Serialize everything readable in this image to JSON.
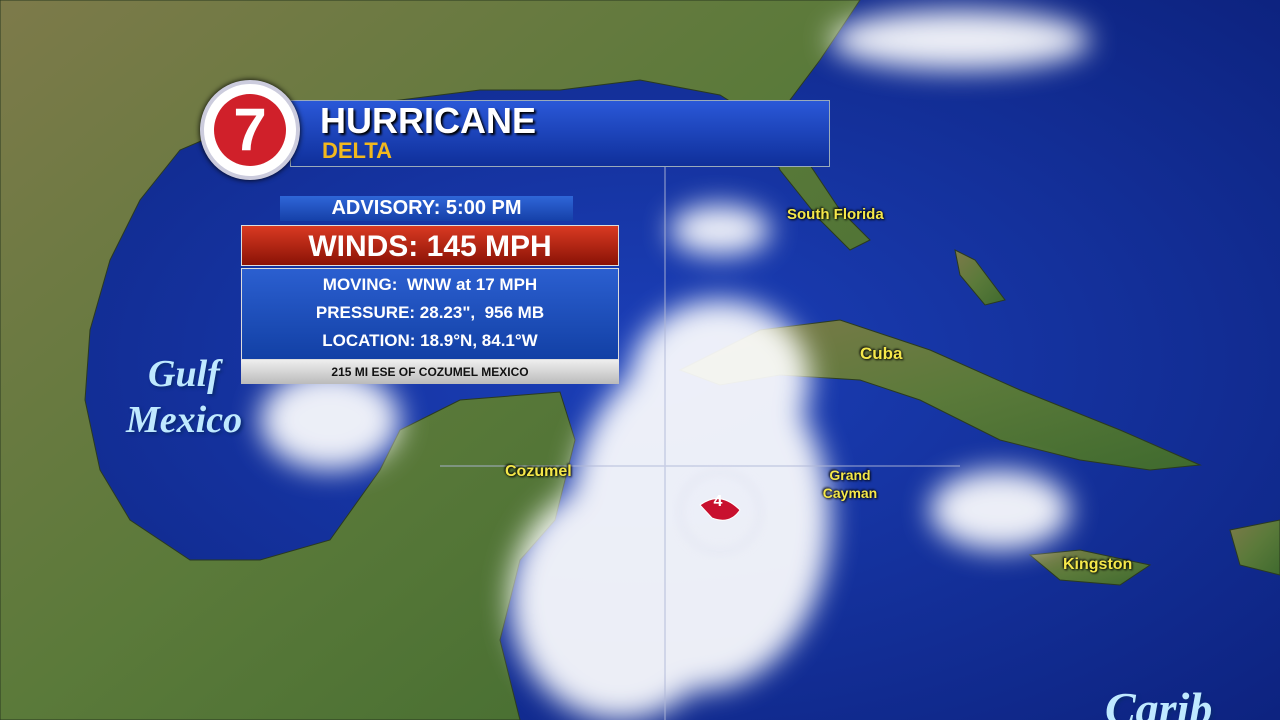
{
  "header": {
    "logo": "7",
    "title": "HURRICANE",
    "subtitle": "DELTA"
  },
  "advisory": {
    "time": "ADVISORY: 5:00 PM",
    "winds": "WINDS: 145 MPH",
    "moving": "MOVING:  WNW at 17 MPH",
    "pressure": "PRESSURE: 28.23\",  956 MB",
    "location": "LOCATION: 18.9°N, 84.1°W",
    "reference": "215 MI ESE OF COZUMEL MEXICO"
  },
  "storm": {
    "category": "4"
  },
  "map_labels": {
    "south_florida": "South Florida",
    "cuba": "Cuba",
    "cozumel": "Cozumel",
    "grand_cayman": "Grand Cayman",
    "kingston": "Kingston",
    "gulf": "Gulf",
    "mexico": "Mexico",
    "caribbean": "Carib"
  }
}
